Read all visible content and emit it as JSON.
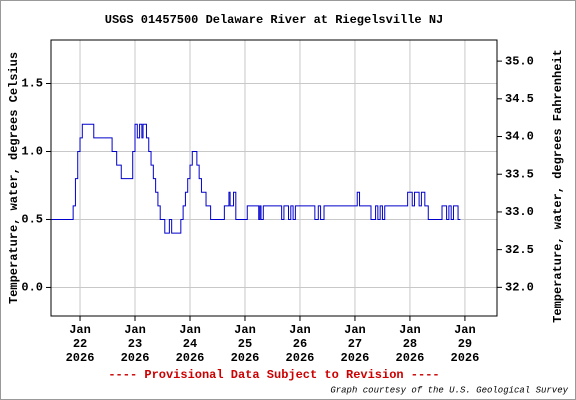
{
  "chart_data": {
    "type": "line",
    "step": "post",
    "title": "USGS 01457500 Delaware River at Riegelsville NJ",
    "ylabel": "Temperature, water, degrees Celsius",
    "y2label": "Temperature, water, degrees Fahrenheit",
    "footer": "---- Provisional Data Subject to Revision ----",
    "credit": "Graph courtesy of the U.S. Geological Survey",
    "xlim": [
      "2026-01-21 11:20",
      "2026-01-29 14:00"
    ],
    "xticks": [
      {
        "value": "2026-01-22 00:00",
        "label": [
          "Jan",
          "22",
          "2026"
        ]
      },
      {
        "value": "2026-01-23 00:00",
        "label": [
          "Jan",
          "23",
          "2026"
        ]
      },
      {
        "value": "2026-01-24 00:00",
        "label": [
          "Jan",
          "24",
          "2026"
        ]
      },
      {
        "value": "2026-01-25 00:00",
        "label": [
          "Jan",
          "25",
          "2026"
        ]
      },
      {
        "value": "2026-01-26 00:00",
        "label": [
          "Jan",
          "26",
          "2026"
        ]
      },
      {
        "value": "2026-01-27 00:00",
        "label": [
          "Jan",
          "27",
          "2026"
        ]
      },
      {
        "value": "2026-01-28 00:00",
        "label": [
          "Jan",
          "28",
          "2026"
        ]
      },
      {
        "value": "2026-01-29 00:00",
        "label": [
          "Jan",
          "29",
          "2026"
        ]
      }
    ],
    "ylim": [
      -0.21,
      1.82
    ],
    "yticks": [
      {
        "value": 0,
        "label": "0.0"
      },
      {
        "value": 0.5,
        "label": "0.5"
      },
      {
        "value": 1,
        "label": "1.0"
      },
      {
        "value": 1.5,
        "label": "1.5"
      }
    ],
    "y2lim": [
      31.62,
      35.28
    ],
    "y2ticks": [
      {
        "value": 32,
        "label": "32.0"
      },
      {
        "value": 32.5,
        "label": "32.5"
      },
      {
        "value": 33,
        "label": "33.0"
      },
      {
        "value": 33.5,
        "label": "33.5"
      },
      {
        "value": 34,
        "label": "34.0"
      },
      {
        "value": 34.5,
        "label": "34.5"
      },
      {
        "value": 35,
        "label": "35.0"
      }
    ],
    "grid": true,
    "x": [
      "2026-01-21 11:20",
      "2026-01-21 21:00",
      "2026-01-21 22:00",
      "2026-01-21 23:00",
      "2026-01-22 00:00",
      "2026-01-22 01:00",
      "2026-01-22 06:00",
      "2026-01-22 14:00",
      "2026-01-22 16:00",
      "2026-01-22 18:00",
      "2026-01-22 23:00",
      "2026-01-23 00:00",
      "2026-01-23 01:00",
      "2026-01-23 02:00",
      "2026-01-23 03:00",
      "2026-01-23 03:30",
      "2026-01-23 05:00",
      "2026-01-23 06:00",
      "2026-01-23 07:00",
      "2026-01-23 08:00",
      "2026-01-23 09:00",
      "2026-01-23 10:00",
      "2026-01-23 11:00",
      "2026-01-23 13:00",
      "2026-01-23 15:00",
      "2026-01-23 16:00",
      "2026-01-23 20:00",
      "2026-01-23 21:00",
      "2026-01-23 22:00",
      "2026-01-23 23:00",
      "2026-01-24 00:00",
      "2026-01-24 01:00",
      "2026-01-24 03:00",
      "2026-01-24 04:00",
      "2026-01-24 05:00",
      "2026-01-24 07:00",
      "2026-01-24 09:00",
      "2026-01-24 15:00",
      "2026-01-24 17:00",
      "2026-01-24 17:30",
      "2026-01-24 19:00",
      "2026-01-24 20:00",
      "2026-01-25 01:00",
      "2026-01-25 06:00",
      "2026-01-25 06:30",
      "2026-01-25 07:00",
      "2026-01-25 08:00",
      "2026-01-25 16:00",
      "2026-01-25 17:00",
      "2026-01-25 19:00",
      "2026-01-25 20:00",
      "2026-01-25 21:00",
      "2026-01-25 22:00",
      "2026-01-26 06:30",
      "2026-01-26 08:00",
      "2026-01-26 09:00",
      "2026-01-26 10:30",
      "2026-01-27 01:00",
      "2026-01-27 02:00",
      "2026-01-27 07:00",
      "2026-01-27 09:00",
      "2026-01-27 10:00",
      "2026-01-27 11:00",
      "2026-01-27 12:00",
      "2026-01-27 13:00",
      "2026-01-27 23:00",
      "2026-01-28 01:00",
      "2026-01-28 02:00",
      "2026-01-28 04:00",
      "2026-01-28 05:00",
      "2026-01-28 06:30",
      "2026-01-28 08:00",
      "2026-01-28 14:00",
      "2026-01-28 16:00",
      "2026-01-28 17:00",
      "2026-01-28 18:00",
      "2026-01-28 19:00",
      "2026-01-28 21:00",
      "2026-01-28 22:00"
    ],
    "series": [
      {
        "color": "#0000cc",
        "values": [
          0.5,
          0.6,
          0.8,
          1.0,
          1.1,
          1.2,
          1.1,
          1.0,
          0.9,
          0.8,
          1.0,
          1.2,
          1.1,
          1.2,
          1.1,
          1.2,
          1.1,
          1.0,
          0.9,
          0.8,
          0.7,
          0.6,
          0.5,
          0.4,
          0.5,
          0.4,
          0.5,
          0.6,
          0.7,
          0.8,
          0.9,
          1.0,
          0.9,
          0.8,
          0.7,
          0.6,
          0.5,
          0.6,
          0.7,
          0.6,
          0.7,
          0.5,
          0.6,
          0.5,
          0.6,
          0.5,
          0.6,
          0.5,
          0.6,
          0.5,
          0.6,
          0.5,
          0.6,
          0.5,
          0.6,
          0.5,
          0.6,
          0.7,
          0.6,
          0.5,
          0.6,
          0.5,
          0.6,
          0.5,
          0.6,
          0.7,
          0.6,
          0.7,
          0.6,
          0.7,
          0.6,
          0.5,
          0.6,
          0.5,
          0.6,
          0.5,
          0.6,
          0.5,
          0.5
        ]
      }
    ]
  }
}
